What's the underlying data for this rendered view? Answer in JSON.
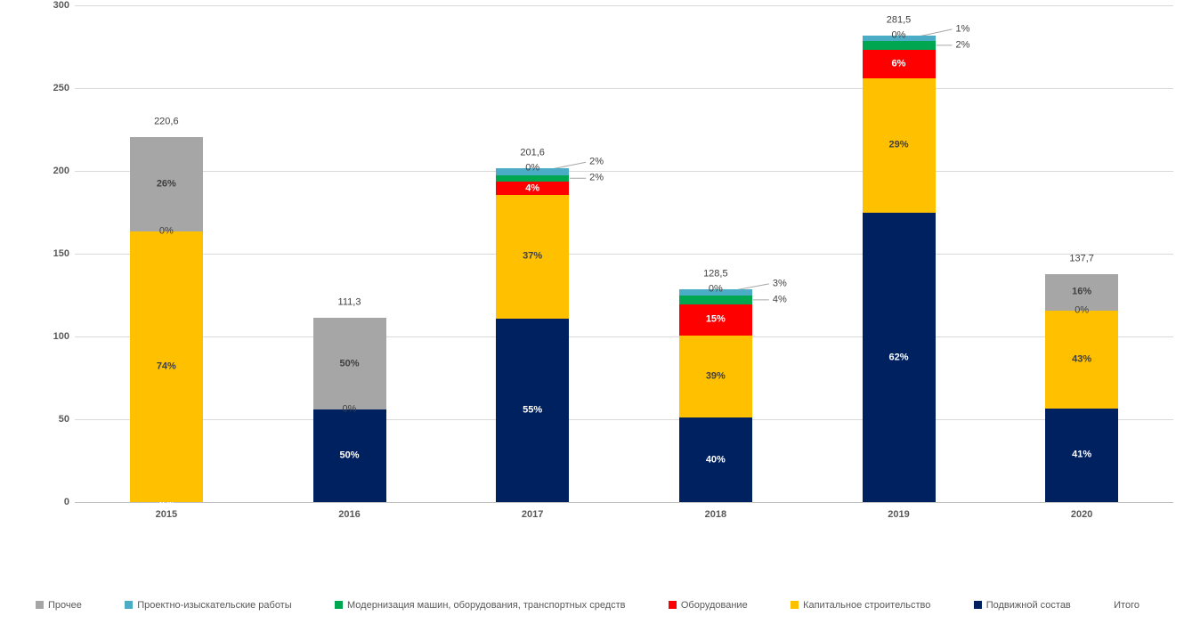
{
  "chart_data": {
    "type": "bar",
    "stacked": true,
    "value_unit": "percent of total, totals in absolute units",
    "title": "",
    "xlabel": "",
    "ylabel": "",
    "categories": [
      "2015",
      "2016",
      "2017",
      "2018",
      "2019",
      "2020"
    ],
    "series": [
      {
        "key": "rolling_stock",
        "name": "Подвижной состав",
        "color": "#00215F",
        "label_color": "#FFFFFF",
        "callout": false,
        "values_pct": [
          0,
          50,
          55,
          40,
          62,
          41
        ]
      },
      {
        "key": "capital_construction",
        "name": "Капитальное строительство",
        "color": "#FFC000",
        "label_color": "#404040",
        "callout": false,
        "values_pct": [
          74,
          0,
          37,
          39,
          29,
          43
        ]
      },
      {
        "key": "equipment",
        "name": "Оборудование",
        "color": "#FF0000",
        "label_color": "#FFFFFF",
        "callout": false,
        "values_pct": [
          0,
          0,
          4,
          15,
          6,
          0
        ]
      },
      {
        "key": "modernization",
        "name": "Модернизация машин, оборудования, транспортных средств",
        "color": "#00A650",
        "label_color": "#404040",
        "callout": true,
        "values_pct": [
          0,
          0,
          2,
          4,
          2,
          0
        ]
      },
      {
        "key": "design_survey",
        "name": "Проектно-изыскательские работы",
        "color": "#4BACC6",
        "label_color": "#404040",
        "callout": true,
        "values_pct": [
          0,
          0,
          2,
          3,
          1,
          0
        ]
      },
      {
        "key": "other",
        "name": "Прочее",
        "color": "#A6A6A6",
        "label_color": "#404040",
        "callout": false,
        "values_pct": [
          26,
          50,
          0,
          0,
          0,
          16
        ]
      }
    ],
    "totals": [
      220.6,
      111.3,
      201.6,
      128.5,
      281.5,
      137.7
    ],
    "total_labels": [
      "220,6",
      "111,3",
      "201,6",
      "128,5",
      "281,5",
      "137,7"
    ],
    "y_axis": {
      "min": 0,
      "max": 300,
      "ticks": [
        0,
        50,
        100,
        150,
        200,
        250,
        300
      ]
    },
    "grid": true,
    "legend_position": "bottom"
  },
  "legend": {
    "items": [
      {
        "key": "other",
        "label": "Прочее",
        "color": "#A6A6A6"
      },
      {
        "key": "design_survey",
        "label": "Проектно-изыскательские работы",
        "color": "#4BACC6"
      },
      {
        "key": "modernization",
        "label": "Модернизация машин, оборудования, транспортных средств",
        "color": "#00A650"
      },
      {
        "key": "equipment",
        "label": "Оборудование",
        "color": "#FF0000"
      },
      {
        "key": "capital_construction",
        "label": "Капитальное строительство",
        "color": "#FFC000"
      },
      {
        "key": "rolling_stock",
        "label": "Подвижной состав",
        "color": "#00215F"
      },
      {
        "key": "total",
        "label": "Итого",
        "color": null
      }
    ]
  },
  "colors": {
    "background": "#FFFFFF",
    "grid": "#D9D9D9",
    "axis": "#BFBFBF",
    "tick_text": "#595959",
    "label_text": "#404040",
    "leader_line": "#A6A6A6"
  }
}
